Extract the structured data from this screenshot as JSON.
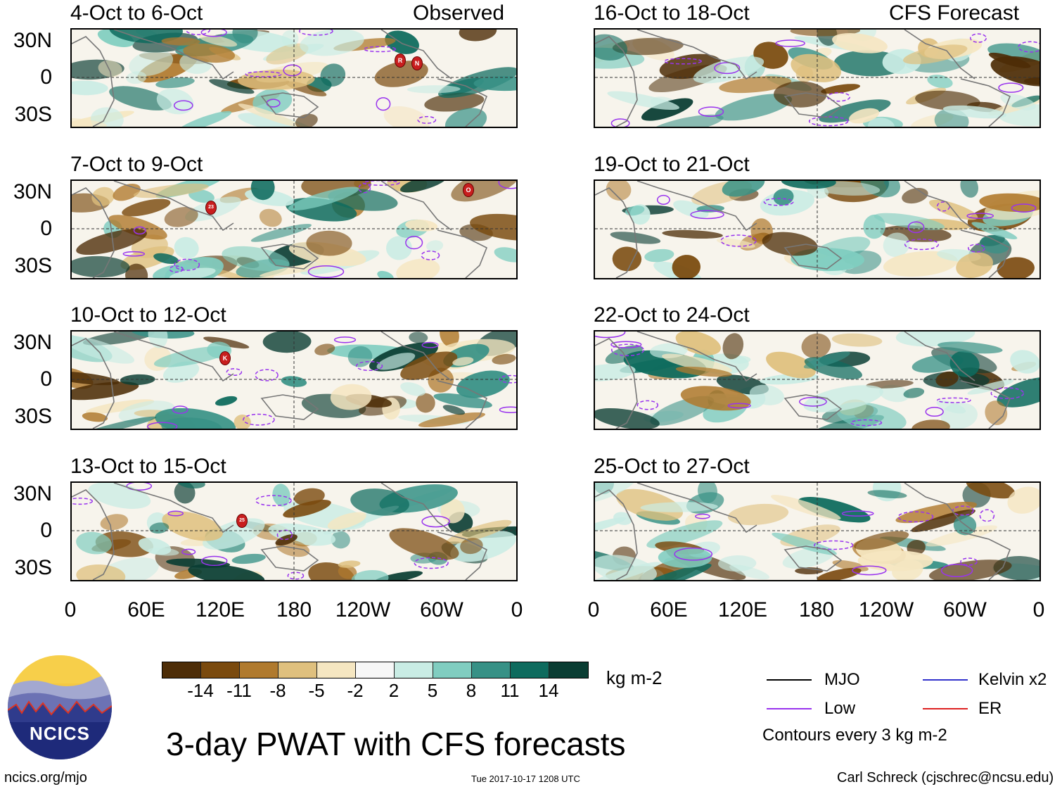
{
  "panels": [
    {
      "title": "4-Oct to 6-Oct",
      "corner": "Observed"
    },
    {
      "title": "7-Oct to 9-Oct",
      "corner": ""
    },
    {
      "title": "10-Oct to 12-Oct",
      "corner": ""
    },
    {
      "title": "13-Oct to 15-Oct",
      "corner": ""
    },
    {
      "title": "16-Oct to 18-Oct",
      "corner": "CFS Forecast"
    },
    {
      "title": "19-Oct to 21-Oct",
      "corner": ""
    },
    {
      "title": "22-Oct to 24-Oct",
      "corner": ""
    },
    {
      "title": "25-Oct to 27-Oct",
      "corner": ""
    }
  ],
  "lat_labels": [
    "30N",
    "0",
    "30S"
  ],
  "lon_labels": [
    "0",
    "60E",
    "120E",
    "180",
    "120W",
    "60W",
    "0"
  ],
  "storm_markers": [
    {
      "label": "R"
    },
    {
      "label": "N"
    },
    {
      "label": "23"
    },
    {
      "label": "O"
    },
    {
      "label": "K"
    },
    {
      "label": "25"
    }
  ],
  "colorbar": {
    "colors": [
      "#4d2d07",
      "#7a4a0e",
      "#b07a2e",
      "#dfc07e",
      "#f5e6c1",
      "#f7f7f7",
      "#c9ece4",
      "#80cdc0",
      "#379186",
      "#0e6b5e",
      "#0a3d33"
    ],
    "labels": [
      "-14",
      "-11",
      "-8",
      "-5",
      "-2",
      "2",
      "5",
      "8",
      "11",
      "14"
    ],
    "units": "kg m-2"
  },
  "legend": {
    "mjo": "MJO",
    "kelvin": "Kelvin x2",
    "low": "Low",
    "er": "ER",
    "contours": "Contours every 3 kg m-2",
    "colors": {
      "mjo": "#000000",
      "kelvin": "#3333cc",
      "low": "#9933ee",
      "er": "#dd2222"
    }
  },
  "logo": {
    "text": "NCICS"
  },
  "footer": {
    "title": "3-day PWAT with CFS forecasts",
    "url": "ncics.org/mjo",
    "timestamp": "Tue 2017-10-17 1208 UTC",
    "credit": "Carl Schreck (cjschrec@ncsu.edu)"
  }
}
